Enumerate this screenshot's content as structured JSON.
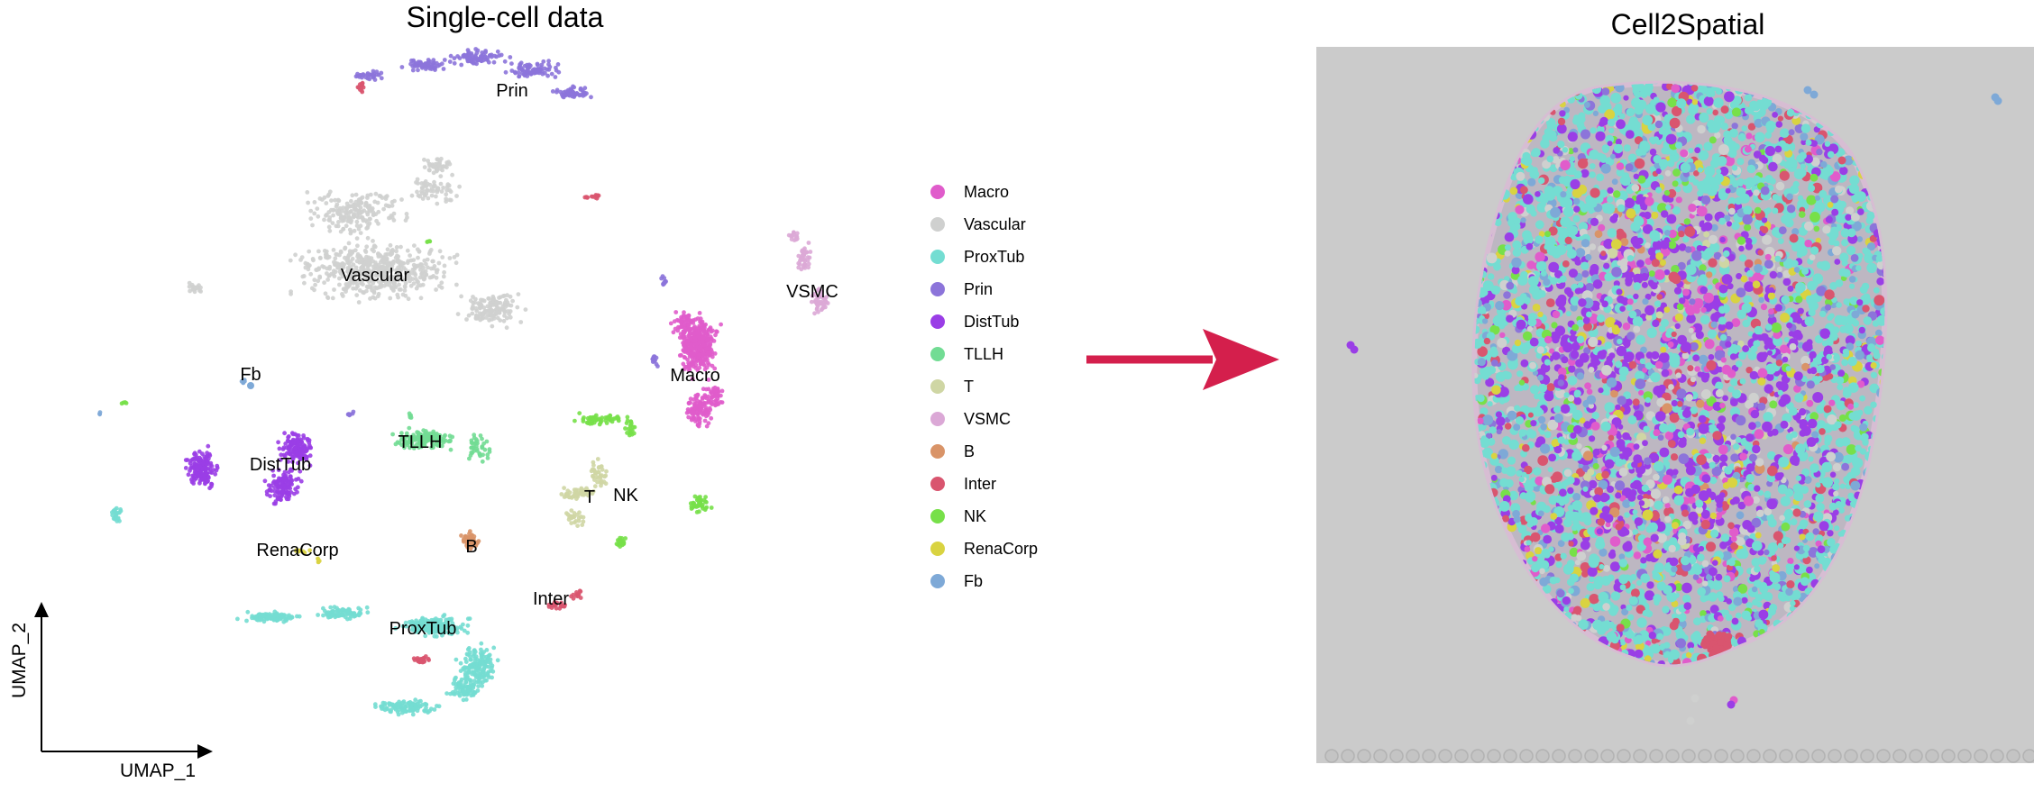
{
  "left_panel": {
    "title": "Single-cell data"
  },
  "right_panel": {
    "title": "Cell2Spatial"
  },
  "axes": {
    "x_label": "UMAP_1",
    "y_label": "UMAP_2"
  },
  "cluster_labels": {
    "prin": "Prin",
    "vascular": "Vascular",
    "vsmc": "VSMC",
    "fb": "Fb",
    "macro": "Macro",
    "tllh": "TLLH",
    "disttub": "DistTub",
    "t": "T",
    "nk": "NK",
    "b": "B",
    "renacorp": "RenaCorp",
    "inter": "Inter",
    "proxtub": "ProxTub"
  },
  "legend": [
    {
      "label": "Macro",
      "color": "#e05ccb"
    },
    {
      "label": "Vascular",
      "color": "#cfd0cf"
    },
    {
      "label": "ProxTub",
      "color": "#74ddd2"
    },
    {
      "label": "Prin",
      "color": "#8c74da"
    },
    {
      "label": "DistTub",
      "color": "#9a3ee6"
    },
    {
      "label": "TLLH",
      "color": "#72dc94"
    },
    {
      "label": "T",
      "color": "#cfd6a4"
    },
    {
      "label": "VSMC",
      "color": "#dba8d6"
    },
    {
      "label": "B",
      "color": "#d99468"
    },
    {
      "label": "Inter",
      "color": "#d9556f"
    },
    {
      "label": "NK",
      "color": "#77e049"
    },
    {
      "label": "RenaCorp",
      "color": "#d9d341"
    },
    {
      "label": "Fb",
      "color": "#7ea9d7"
    }
  ],
  "colors": {
    "arrow": "#d41f4c",
    "tissue_background": "#cbcbcb"
  }
}
